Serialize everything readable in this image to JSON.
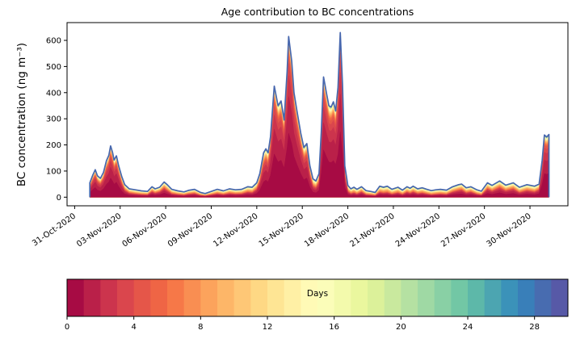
{
  "title": "Age contribution to BC concentrations",
  "y_axis": {
    "label": "BC concentration (ng m⁻³)",
    "ticks": [
      0,
      100,
      200,
      300,
      400,
      500,
      600
    ],
    "lim": [
      -33,
      668
    ]
  },
  "x_axis": {
    "lim_days": [
      -1.5,
      31.5
    ],
    "epoch": "days since 01-Nov-2020 00:00",
    "ticks": [
      {
        "day": -1,
        "label": "31-Oct-2020"
      },
      {
        "day": 2,
        "label": "03-Nov-2020"
      },
      {
        "day": 5,
        "label": "06-Nov-2020"
      },
      {
        "day": 8,
        "label": "09-Nov-2020"
      },
      {
        "day": 11,
        "label": "12-Nov-2020"
      },
      {
        "day": 14,
        "label": "15-Nov-2020"
      },
      {
        "day": 17,
        "label": "18-Nov-2020"
      },
      {
        "day": 20,
        "label": "21-Nov-2020"
      },
      {
        "day": 23,
        "label": "24-Nov-2020"
      },
      {
        "day": 26,
        "label": "27-Nov-2020"
      },
      {
        "day": 29,
        "label": "30-Nov-2020"
      }
    ]
  },
  "colorbar": {
    "label": "Days",
    "vmin": 0,
    "vmax": 30,
    "n_segments": 30,
    "ticks": [
      0,
      4,
      8,
      12,
      16,
      20,
      24,
      28
    ],
    "colormap_name": "Spectral",
    "colormap_anchors": [
      "#9e0142",
      "#d53e4f",
      "#f46d43",
      "#fdae61",
      "#fee08b",
      "#ffffbf",
      "#e6f598",
      "#abdda4",
      "#66c2a5",
      "#3288bd",
      "#5e4fa2"
    ]
  },
  "style_colors": {
    "outline_line": "#4767ae",
    "axis": "#000000",
    "background": "#ffffff"
  },
  "chart_data": {
    "type": "area",
    "stacked": true,
    "n_age_bins": 30,
    "age_bin_width_days": 1,
    "title": "Age contribution to BC concentrations",
    "xlabel": "",
    "ylabel": "BC concentration (ng m⁻³)",
    "ylim": [
      -33,
      668
    ],
    "grid": false,
    "legend": "colorbar (Days, 0-30)",
    "x_days": [
      0.0,
      0.2,
      0.36,
      0.5,
      0.7,
      0.9,
      1.1,
      1.25,
      1.37,
      1.5,
      1.6,
      1.75,
      1.9,
      2.1,
      2.3,
      2.6,
      3.0,
      3.4,
      3.8,
      4.1,
      4.3,
      4.6,
      4.9,
      5.1,
      5.4,
      5.8,
      6.2,
      6.5,
      6.9,
      7.3,
      7.6,
      8.0,
      8.4,
      8.8,
      9.2,
      9.6,
      10.0,
      10.4,
      10.7,
      11.0,
      11.2,
      11.45,
      11.6,
      11.75,
      11.9,
      12.15,
      12.4,
      12.6,
      12.8,
      13.0,
      13.1,
      13.3,
      13.45,
      13.65,
      13.9,
      14.1,
      14.3,
      14.5,
      14.7,
      14.9,
      15.1,
      15.25,
      15.4,
      15.6,
      15.75,
      15.9,
      16.05,
      16.2,
      16.35,
      16.5,
      16.65,
      16.8,
      17.0,
      17.2,
      17.4,
      17.6,
      17.9,
      18.2,
      18.5,
      18.8,
      19.1,
      19.35,
      19.6,
      19.9,
      20.3,
      20.6,
      20.9,
      21.1,
      21.3,
      21.6,
      21.9,
      22.2,
      22.5,
      22.8,
      23.1,
      23.5,
      23.9,
      24.3,
      24.5,
      24.8,
      25.1,
      25.5,
      25.8,
      26.2,
      26.5,
      27.0,
      27.4,
      27.9,
      28.3,
      28.8,
      29.3,
      29.6,
      29.8,
      29.95,
      30.1,
      30.25
    ],
    "total_bc": [
      55,
      85,
      105,
      82,
      72,
      95,
      140,
      160,
      196,
      170,
      142,
      158,
      120,
      80,
      48,
      32,
      28,
      24,
      22,
      40,
      32,
      38,
      58,
      48,
      30,
      24,
      20,
      26,
      30,
      18,
      14,
      22,
      30,
      24,
      32,
      28,
      30,
      40,
      38,
      55,
      90,
      170,
      185,
      170,
      230,
      425,
      350,
      368,
      295,
      480,
      615,
      520,
      400,
      330,
      245,
      190,
      205,
      120,
      70,
      62,
      90,
      250,
      460,
      395,
      350,
      345,
      365,
      330,
      420,
      630,
      430,
      120,
      45,
      32,
      38,
      30,
      40,
      25,
      22,
      18,
      42,
      38,
      42,
      30,
      38,
      27,
      40,
      34,
      42,
      32,
      36,
      30,
      25,
      28,
      30,
      27,
      40,
      48,
      50,
      36,
      40,
      28,
      23,
      55,
      45,
      62,
      46,
      55,
      38,
      48,
      42,
      50,
      140,
      238,
      230,
      240
    ],
    "young_fraction_lt6d": [
      0.72,
      0.78,
      0.8,
      0.75,
      0.72,
      0.76,
      0.8,
      0.82,
      0.84,
      0.82,
      0.8,
      0.82,
      0.78,
      0.68,
      0.58,
      0.5,
      0.45,
      0.42,
      0.42,
      0.55,
      0.5,
      0.55,
      0.62,
      0.55,
      0.46,
      0.42,
      0.4,
      0.45,
      0.48,
      0.38,
      0.36,
      0.42,
      0.46,
      0.42,
      0.46,
      0.44,
      0.44,
      0.5,
      0.48,
      0.58,
      0.68,
      0.78,
      0.8,
      0.78,
      0.82,
      0.88,
      0.87,
      0.87,
      0.85,
      0.89,
      0.9,
      0.89,
      0.88,
      0.86,
      0.83,
      0.8,
      0.81,
      0.72,
      0.62,
      0.6,
      0.66,
      0.84,
      0.89,
      0.88,
      0.87,
      0.87,
      0.87,
      0.86,
      0.88,
      0.9,
      0.88,
      0.7,
      0.5,
      0.44,
      0.46,
      0.42,
      0.52,
      0.4,
      0.38,
      0.36,
      0.46,
      0.44,
      0.44,
      0.4,
      0.46,
      0.4,
      0.5,
      0.46,
      0.5,
      0.44,
      0.46,
      0.42,
      0.38,
      0.4,
      0.42,
      0.4,
      0.52,
      0.56,
      0.58,
      0.48,
      0.52,
      0.42,
      0.38,
      0.6,
      0.54,
      0.62,
      0.55,
      0.6,
      0.48,
      0.55,
      0.5,
      0.6,
      0.78,
      0.86,
      0.86,
      0.86
    ]
  }
}
